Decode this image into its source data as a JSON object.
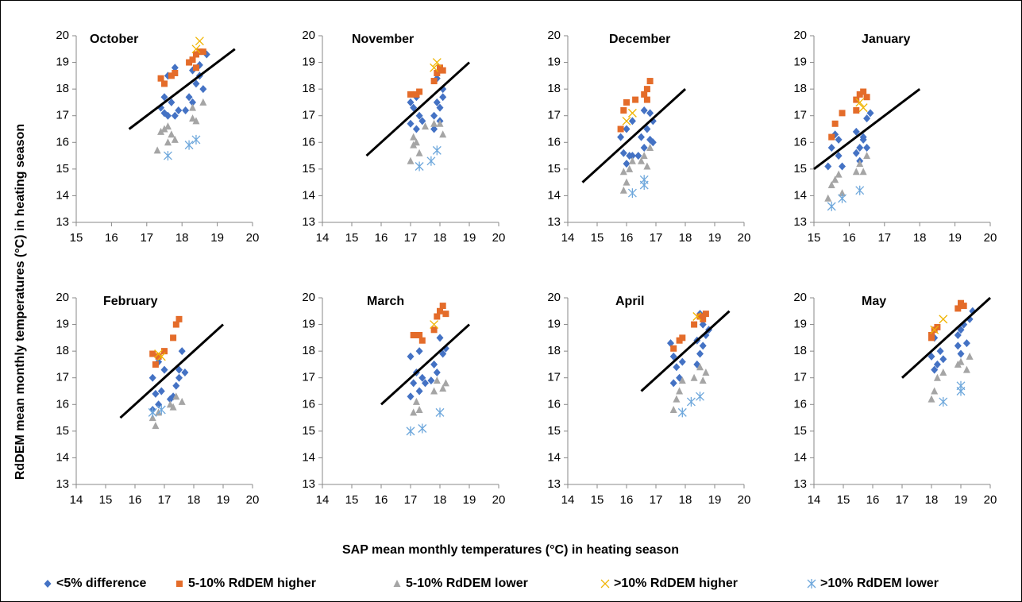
{
  "figure": {
    "x_label": "SAP mean monthly temperatures (°C) in heating season",
    "y_label": "RdDEM mean monthly temperatures (°C) in heating season",
    "legend": [
      {
        "name": "<5% difference",
        "color": "#4472c4",
        "marker": "diamond"
      },
      {
        "name": "5-10% RdDEM higher",
        "color": "#e46c2a",
        "marker": "square"
      },
      {
        "name": "5-10% RdDEM lower",
        "color": "#a5a5a5",
        "marker": "triangle"
      },
      {
        "name": ">10% RdDEM higher",
        "color": "#f0b400",
        "marker": "cross"
      },
      {
        "name": ">10% RdDEM lower",
        "color": "#6fa8dc",
        "marker": "asterisk"
      }
    ]
  },
  "chart_data": [
    {
      "type": "scatter",
      "title": "October",
      "xlim": [
        15,
        20
      ],
      "xticks": [
        15,
        16,
        17,
        18,
        19,
        20
      ],
      "ylim": [
        13,
        20
      ],
      "yticks": [
        13,
        14,
        15,
        16,
        17,
        18,
        19,
        20
      ],
      "line": {
        "x": [
          16.5,
          19.5
        ],
        "y": [
          16.5,
          19.5
        ]
      },
      "series": [
        {
          "x": [
            17.4,
            17.5,
            17.6,
            17.7,
            17.6,
            17.8,
            17.5,
            17.9,
            18.2,
            18.3,
            18.4,
            18.5,
            18.6,
            18.5,
            18.7,
            18.3,
            17.8,
            18.1
          ],
          "y": [
            17.3,
            17.1,
            17.0,
            17.5,
            18.5,
            18.8,
            17.7,
            17.2,
            17.7,
            17.5,
            18.2,
            18.5,
            18.0,
            18.9,
            19.3,
            18.7,
            17.0,
            17.2
          ]
        },
        {
          "x": [
            17.4,
            17.5,
            17.7,
            17.8,
            18.2,
            18.3,
            18.4,
            18.5,
            18.6,
            18.4
          ],
          "y": [
            18.4,
            18.2,
            18.5,
            18.6,
            19.0,
            19.1,
            19.3,
            19.4,
            19.4,
            18.8
          ]
        },
        {
          "x": [
            17.3,
            17.4,
            17.5,
            17.6,
            17.7,
            17.8,
            18.3,
            18.4,
            18.6,
            18.3,
            17.6
          ],
          "y": [
            15.7,
            16.4,
            16.5,
            16.6,
            16.3,
            16.1,
            16.9,
            16.8,
            17.5,
            17.3,
            16.0
          ]
        },
        {
          "x": [
            18.4,
            18.5
          ],
          "y": [
            19.5,
            19.8
          ]
        },
        {
          "x": [
            17.6,
            18.2,
            18.4
          ],
          "y": [
            15.5,
            15.9,
            16.1
          ]
        }
      ]
    },
    {
      "type": "scatter",
      "title": "November",
      "xlim": [
        14,
        20
      ],
      "xticks": [
        14,
        15,
        16,
        17,
        18,
        19,
        20
      ],
      "ylim": [
        13,
        20
      ],
      "yticks": [
        13,
        14,
        15,
        16,
        17,
        18,
        19,
        20
      ],
      "line": {
        "x": [
          15.5,
          19
        ],
        "y": [
          15.5,
          19
        ]
      },
      "series": [
        {
          "x": [
            17.0,
            17.1,
            17.0,
            17.2,
            17.3,
            17.4,
            17.2,
            17.8,
            17.9,
            18.0,
            18.1,
            17.9,
            18.0,
            17.8,
            18.1
          ],
          "y": [
            17.5,
            17.3,
            16.7,
            16.5,
            17.0,
            16.8,
            17.7,
            17.0,
            17.5,
            17.3,
            18.0,
            18.4,
            16.8,
            16.5,
            17.7
          ]
        },
        {
          "x": [
            17.0,
            17.2,
            17.3,
            17.8,
            17.9,
            18.0,
            18.1
          ],
          "y": [
            17.8,
            17.8,
            17.9,
            18.3,
            18.6,
            18.8,
            18.7
          ]
        },
        {
          "x": [
            17.0,
            17.1,
            17.2,
            17.3,
            17.5,
            17.8,
            18.0,
            18.1,
            17.1
          ],
          "y": [
            15.3,
            15.9,
            16.0,
            15.6,
            16.6,
            16.7,
            16.7,
            16.3,
            16.2
          ]
        },
        {
          "x": [
            17.9,
            17.8
          ],
          "y": [
            19.0,
            18.8
          ]
        },
        {
          "x": [
            17.3,
            17.7,
            17.9
          ],
          "y": [
            15.1,
            15.3,
            15.7
          ]
        }
      ]
    },
    {
      "type": "scatter",
      "title": "December",
      "xlim": [
        14,
        20
      ],
      "xticks": [
        14,
        15,
        16,
        17,
        18,
        19,
        20
      ],
      "ylim": [
        13,
        20
      ],
      "yticks": [
        13,
        14,
        15,
        16,
        17,
        18,
        19,
        20
      ],
      "line": {
        "x": [
          14.5,
          18
        ],
        "y": [
          14.5,
          18
        ]
      },
      "series": [
        {
          "x": [
            15.8,
            15.9,
            16.0,
            16.1,
            16.2,
            16.0,
            16.2,
            16.5,
            16.6,
            16.7,
            16.8,
            16.9,
            16.8,
            16.6,
            16.4,
            16.9
          ],
          "y": [
            16.2,
            15.6,
            15.2,
            15.5,
            16.8,
            16.5,
            15.5,
            16.2,
            15.8,
            16.5,
            17.1,
            16.8,
            16.1,
            17.2,
            15.5,
            16.0
          ]
        },
        {
          "x": [
            15.8,
            15.9,
            16.0,
            16.3,
            16.6,
            16.7,
            16.8,
            16.7
          ],
          "y": [
            16.5,
            17.2,
            17.5,
            17.6,
            17.8,
            18.0,
            18.3,
            17.6
          ]
        },
        {
          "x": [
            15.9,
            16.0,
            15.9,
            16.1,
            16.2,
            16.6,
            16.7,
            16.8,
            16.5
          ],
          "y": [
            14.2,
            14.5,
            14.9,
            15.0,
            15.3,
            15.5,
            15.1,
            15.8,
            15.3
          ]
        },
        {
          "x": [
            16.0,
            16.2
          ],
          "y": [
            16.8,
            17.1
          ]
        },
        {
          "x": [
            16.2,
            16.6,
            16.6
          ],
          "y": [
            14.1,
            14.4,
            14.6
          ]
        }
      ]
    },
    {
      "type": "scatter",
      "title": "January",
      "xlim": [
        15,
        20
      ],
      "xticks": [
        15,
        16,
        17,
        18,
        19,
        20
      ],
      "ylim": [
        13,
        20
      ],
      "yticks": [
        13,
        14,
        15,
        16,
        17,
        18,
        19,
        20
      ],
      "line": {
        "x": [
          15,
          18
        ],
        "y": [
          15,
          18
        ]
      },
      "series": [
        {
          "x": [
            15.4,
            15.5,
            15.6,
            15.7,
            15.8,
            15.7,
            16.2,
            16.3,
            16.4,
            16.5,
            16.3,
            16.5,
            16.2,
            16.6,
            16.4
          ],
          "y": [
            15.1,
            15.8,
            16.3,
            15.5,
            15.1,
            16.1,
            16.4,
            15.8,
            16.1,
            15.8,
            15.3,
            16.9,
            15.6,
            17.1,
            16.2
          ]
        },
        {
          "x": [
            15.5,
            15.6,
            15.8,
            16.2,
            16.3,
            16.4,
            16.5,
            16.2
          ],
          "y": [
            16.2,
            16.7,
            17.1,
            17.6,
            17.8,
            17.9,
            17.7,
            17.2
          ]
        },
        {
          "x": [
            15.4,
            15.5,
            15.6,
            15.7,
            15.8,
            16.2,
            16.3,
            16.5,
            16.4
          ],
          "y": [
            13.9,
            14.4,
            14.6,
            14.8,
            14.1,
            14.9,
            15.2,
            15.5,
            14.9
          ]
        },
        {
          "x": [
            16.3,
            16.4
          ],
          "y": [
            17.5,
            17.3
          ]
        },
        {
          "x": [
            15.5,
            15.8,
            16.3
          ],
          "y": [
            13.6,
            13.9,
            14.2
          ]
        }
      ]
    },
    {
      "type": "scatter",
      "title": "February",
      "xlim": [
        14,
        20
      ],
      "xticks": [
        14,
        15,
        16,
        17,
        18,
        19,
        20
      ],
      "ylim": [
        13,
        20
      ],
      "yticks": [
        13,
        14,
        15,
        16,
        17,
        18,
        19,
        20
      ],
      "line": {
        "x": [
          15.5,
          19
        ],
        "y": [
          15.5,
          19
        ]
      },
      "series": [
        {
          "x": [
            16.6,
            16.7,
            16.8,
            16.9,
            17.0,
            16.8,
            17.2,
            17.4,
            17.5,
            17.6,
            17.7,
            17.5,
            16.6,
            17.3
          ],
          "y": [
            17.0,
            16.4,
            16.0,
            16.5,
            17.3,
            17.6,
            16.2,
            16.7,
            17.3,
            18.0,
            17.2,
            17.0,
            15.8,
            16.3
          ]
        },
        {
          "x": [
            16.6,
            16.7,
            16.8,
            17.3,
            17.4,
            17.5,
            17.0
          ],
          "y": [
            17.9,
            17.5,
            17.8,
            18.5,
            19.0,
            19.2,
            18.0
          ]
        },
        {
          "x": [
            16.6,
            16.7,
            16.8,
            17.2,
            17.4,
            17.6,
            17.3
          ],
          "y": [
            15.5,
            15.2,
            15.7,
            16.0,
            16.3,
            16.1,
            15.9
          ]
        },
        {
          "x": [
            16.8,
            16.9
          ],
          "y": [
            17.9,
            17.8
          ]
        },
        {
          "x": [
            16.6,
            16.9
          ],
          "y": [
            15.7,
            15.8
          ]
        }
      ]
    },
    {
      "type": "scatter",
      "title": "March",
      "xlim": [
        14,
        20
      ],
      "xticks": [
        14,
        15,
        16,
        17,
        18,
        19,
        20
      ],
      "ylim": [
        13,
        20
      ],
      "yticks": [
        13,
        14,
        15,
        16,
        17,
        18,
        19,
        20
      ],
      "line": {
        "x": [
          16,
          19
        ],
        "y": [
          16,
          19
        ]
      },
      "series": [
        {
          "x": [
            17.0,
            17.1,
            17.2,
            17.3,
            17.4,
            17.5,
            17.3,
            17.8,
            17.9,
            18.0,
            18.1,
            18.2,
            17.0,
            17.7
          ],
          "y": [
            17.8,
            16.8,
            17.2,
            16.5,
            17.0,
            16.8,
            18.0,
            17.5,
            17.2,
            18.5,
            17.9,
            18.1,
            16.3,
            16.9
          ]
        },
        {
          "x": [
            17.1,
            17.3,
            17.4,
            17.9,
            18.0,
            18.1,
            18.2,
            17.8
          ],
          "y": [
            18.6,
            18.6,
            18.4,
            19.3,
            19.5,
            19.7,
            19.4,
            18.8
          ]
        },
        {
          "x": [
            17.1,
            17.2,
            17.3,
            17.8,
            17.9,
            18.1,
            18.2
          ],
          "y": [
            15.7,
            16.1,
            15.8,
            16.5,
            16.9,
            16.6,
            16.8
          ]
        },
        {
          "x": [
            17.8
          ],
          "y": [
            19.0
          ]
        },
        {
          "x": [
            17.0,
            17.4,
            18.0
          ],
          "y": [
            15.0,
            15.1,
            15.7
          ]
        }
      ]
    },
    {
      "type": "scatter",
      "title": "April",
      "xlim": [
        14,
        20
      ],
      "xticks": [
        14,
        15,
        16,
        17,
        18,
        19,
        20
      ],
      "ylim": [
        13,
        20
      ],
      "yticks": [
        13,
        14,
        15,
        16,
        17,
        18,
        19,
        20
      ],
      "line": {
        "x": [
          16.5,
          19.5
        ],
        "y": [
          16.5,
          19.5
        ]
      },
      "series": [
        {
          "x": [
            17.5,
            17.6,
            17.7,
            17.8,
            17.6,
            17.9,
            18.4,
            18.5,
            18.6,
            18.7,
            18.6,
            18.4,
            18.5,
            18.8
          ],
          "y": [
            18.3,
            17.8,
            17.4,
            17.0,
            16.8,
            17.6,
            18.4,
            17.9,
            18.2,
            18.6,
            19.0,
            17.5,
            19.4,
            18.8
          ]
        },
        {
          "x": [
            17.6,
            17.8,
            17.9,
            18.3,
            18.5,
            18.7,
            18.6
          ],
          "y": [
            18.1,
            18.4,
            18.5,
            19.0,
            19.3,
            19.4,
            19.2
          ]
        },
        {
          "x": [
            17.6,
            17.7,
            17.8,
            17.9,
            18.3,
            18.5,
            18.7,
            18.6
          ],
          "y": [
            15.8,
            16.2,
            16.5,
            16.9,
            17.0,
            17.4,
            17.2,
            16.9
          ]
        },
        {
          "x": [
            18.4
          ],
          "y": [
            19.3
          ]
        },
        {
          "x": [
            17.9,
            18.2,
            18.5
          ],
          "y": [
            15.7,
            16.1,
            16.3
          ]
        }
      ]
    },
    {
      "type": "scatter",
      "title": "May",
      "xlim": [
        14,
        20
      ],
      "xticks": [
        14,
        15,
        16,
        17,
        18,
        19,
        20
      ],
      "ylim": [
        13,
        20
      ],
      "yticks": [
        13,
        14,
        15,
        16,
        17,
        18,
        19,
        20
      ],
      "line": {
        "x": [
          17,
          20
        ],
        "y": [
          17,
          20
        ]
      },
      "series": [
        {
          "x": [
            18.0,
            18.1,
            18.2,
            18.3,
            18.1,
            18.4,
            18.9,
            19.0,
            19.1,
            19.2,
            19.3,
            19.4,
            18.9,
            19.0
          ],
          "y": [
            17.8,
            17.3,
            17.5,
            18.0,
            18.5,
            17.7,
            18.2,
            18.8,
            19.0,
            18.3,
            19.2,
            19.5,
            18.6,
            17.9
          ]
        },
        {
          "x": [
            18.0,
            18.1,
            18.2,
            18.9,
            19.0,
            19.1,
            18.0
          ],
          "y": [
            18.6,
            18.8,
            18.9,
            19.6,
            19.8,
            19.7,
            18.5
          ]
        },
        {
          "x": [
            18.0,
            18.1,
            18.2,
            18.4,
            19.0,
            19.2,
            19.3,
            18.9
          ],
          "y": [
            16.2,
            16.5,
            17.0,
            17.2,
            17.6,
            17.3,
            17.8,
            17.5
          ]
        },
        {
          "x": [
            18.4,
            18.1
          ],
          "y": [
            19.2,
            18.8
          ]
        },
        {
          "x": [
            18.4,
            19.0,
            19.0
          ],
          "y": [
            16.1,
            16.5,
            16.7
          ]
        }
      ]
    }
  ]
}
